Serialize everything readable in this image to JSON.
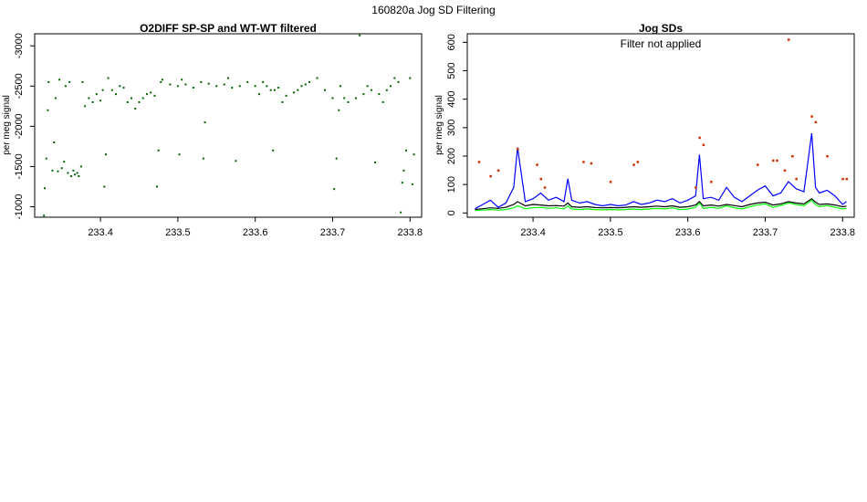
{
  "figure": {
    "title": "160820a   Jog SD Filtering"
  },
  "chart_data": [
    {
      "type": "scatter",
      "title": "O2DIFF SP-SP and WT-WT filtered",
      "xlabel": "",
      "ylabel": "per meg signal",
      "xlim": [
        233.315,
        233.815
      ],
      "ylim": [
        -3150,
        -870
      ],
      "y_reversed": true,
      "x_ticks": [
        "233.4",
        "233.5",
        "233.6",
        "233.7",
        "233.8"
      ],
      "x_tick_values": [
        233.4,
        233.5,
        233.6,
        233.7,
        233.8
      ],
      "y_ticks": [
        "-1000",
        "-1500",
        "-2000",
        "-2500",
        "-3000"
      ],
      "y_tick_values": [
        -1000,
        -1500,
        -2000,
        -2500,
        -3000
      ],
      "series": [
        {
          "color": "#006400",
          "points": [
            [
              233.327,
              -890
            ],
            [
              233.328,
              -1230
            ],
            [
              233.33,
              -1600
            ],
            [
              233.332,
              -2200
            ],
            [
              233.333,
              -2550
            ],
            [
              233.338,
              -1450
            ],
            [
              233.34,
              -1800
            ],
            [
              233.342,
              -2350
            ],
            [
              233.345,
              -1440
            ],
            [
              233.347,
              -2580
            ],
            [
              233.35,
              -1480
            ],
            [
              233.353,
              -1560
            ],
            [
              233.355,
              -2500
            ],
            [
              233.358,
              -1420
            ],
            [
              233.36,
              -2550
            ],
            [
              233.362,
              -1380
            ],
            [
              233.365,
              -1450
            ],
            [
              233.367,
              -1400
            ],
            [
              233.37,
              -1420
            ],
            [
              233.372,
              -1380
            ],
            [
              233.375,
              -1500
            ],
            [
              233.377,
              -2550
            ],
            [
              233.38,
              -2250
            ],
            [
              233.385,
              -2350
            ],
            [
              233.39,
              -2300
            ],
            [
              233.395,
              -2400
            ],
            [
              233.4,
              -2320
            ],
            [
              233.403,
              -2450
            ],
            [
              233.405,
              -1250
            ],
            [
              233.407,
              -1650
            ],
            [
              233.41,
              -2600
            ],
            [
              233.415,
              -2450
            ],
            [
              233.42,
              -2400
            ],
            [
              233.425,
              -2500
            ],
            [
              233.43,
              -2480
            ],
            [
              233.435,
              -2300
            ],
            [
              233.44,
              -2350
            ],
            [
              233.445,
              -2220
            ],
            [
              233.45,
              -2300
            ],
            [
              233.455,
              -2350
            ],
            [
              233.46,
              -2400
            ],
            [
              233.465,
              -2420
            ],
            [
              233.47,
              -2380
            ],
            [
              233.473,
              -1250
            ],
            [
              233.475,
              -1700
            ],
            [
              233.478,
              -2550
            ],
            [
              233.48,
              -2580
            ],
            [
              233.49,
              -2520
            ],
            [
              233.5,
              -2500
            ],
            [
              233.502,
              -1650
            ],
            [
              233.505,
              -2580
            ],
            [
              233.51,
              -2520
            ],
            [
              233.52,
              -2480
            ],
            [
              233.53,
              -2550
            ],
            [
              233.533,
              -1600
            ],
            [
              233.535,
              -2050
            ],
            [
              233.54,
              -2530
            ],
            [
              233.55,
              -2500
            ],
            [
              233.56,
              -2520
            ],
            [
              233.565,
              -2600
            ],
            [
              233.57,
              -2480
            ],
            [
              233.575,
              -1570
            ],
            [
              233.58,
              -2500
            ],
            [
              233.59,
              -2550
            ],
            [
              233.6,
              -2500
            ],
            [
              233.605,
              -2400
            ],
            [
              233.61,
              -2550
            ],
            [
              233.615,
              -2500
            ],
            [
              233.62,
              -2450
            ],
            [
              233.623,
              -1700
            ],
            [
              233.625,
              -2450
            ],
            [
              233.63,
              -2480
            ],
            [
              233.635,
              -2300
            ],
            [
              233.64,
              -2380
            ],
            [
              233.65,
              -2420
            ],
            [
              233.655,
              -2450
            ],
            [
              233.66,
              -2500
            ],
            [
              233.665,
              -2520
            ],
            [
              233.67,
              -2550
            ],
            [
              233.68,
              -2600
            ],
            [
              233.69,
              -2450
            ],
            [
              233.7,
              -2350
            ],
            [
              233.702,
              -1220
            ],
            [
              233.705,
              -1600
            ],
            [
              233.708,
              -2200
            ],
            [
              233.71,
              -2500
            ],
            [
              233.715,
              -2350
            ],
            [
              233.72,
              -2300
            ],
            [
              233.73,
              -2350
            ],
            [
              233.735,
              -3130
            ],
            [
              233.74,
              -2400
            ],
            [
              233.745,
              -2500
            ],
            [
              233.75,
              -2450
            ],
            [
              233.755,
              -1550
            ],
            [
              233.76,
              -2400
            ],
            [
              233.765,
              -2300
            ],
            [
              233.77,
              -2450
            ],
            [
              233.775,
              -2500
            ],
            [
              233.78,
              -2600
            ],
            [
              233.785,
              -2550
            ],
            [
              233.788,
              -930
            ],
            [
              233.79,
              -1300
            ],
            [
              233.792,
              -1450
            ],
            [
              233.795,
              -1700
            ],
            [
              233.8,
              -2600
            ],
            [
              233.803,
              -1280
            ],
            [
              233.805,
              -1650
            ]
          ]
        }
      ]
    },
    {
      "type": "line",
      "title": "Jog SDs",
      "xlabel": "",
      "ylabel": "per meg signal",
      "annotation": "Filter not applied",
      "xlim": [
        233.315,
        233.815
      ],
      "ylim": [
        -15,
        630
      ],
      "x_ticks": [
        "233.4",
        "233.5",
        "233.6",
        "233.7",
        "233.8"
      ],
      "x_tick_values": [
        233.4,
        233.5,
        233.6,
        233.7,
        233.8
      ],
      "y_ticks": [
        "0",
        "100",
        "200",
        "300",
        "400",
        "500",
        "600"
      ],
      "y_tick_values": [
        0,
        100,
        200,
        300,
        400,
        500,
        600
      ],
      "x": [
        233.325,
        233.335,
        233.345,
        233.355,
        233.365,
        233.375,
        233.38,
        233.39,
        233.4,
        233.41,
        233.42,
        233.43,
        233.44,
        233.445,
        233.45,
        233.46,
        233.47,
        233.48,
        233.49,
        233.5,
        233.51,
        233.52,
        233.53,
        233.54,
        233.55,
        233.56,
        233.57,
        233.58,
        233.59,
        233.6,
        233.61,
        233.615,
        233.62,
        233.63,
        233.64,
        233.65,
        233.66,
        233.67,
        233.68,
        233.69,
        233.7,
        233.71,
        233.72,
        233.73,
        233.74,
        233.75,
        233.76,
        233.765,
        233.77,
        233.78,
        233.79,
        233.8,
        233.805
      ],
      "series": [
        {
          "color": "#0000ff",
          "values": [
            15,
            30,
            45,
            20,
            35,
            90,
            230,
            40,
            50,
            70,
            45,
            55,
            40,
            120,
            45,
            35,
            40,
            30,
            25,
            30,
            25,
            28,
            40,
            30,
            35,
            45,
            40,
            50,
            35,
            45,
            60,
            205,
            50,
            55,
            45,
            90,
            55,
            40,
            60,
            80,
            95,
            60,
            70,
            110,
            85,
            75,
            280,
            90,
            70,
            80,
            60,
            30,
            40
          ]
        },
        {
          "color": "#000000",
          "values": [
            12,
            15,
            18,
            16,
            20,
            30,
            40,
            25,
            30,
            28,
            25,
            26,
            24,
            35,
            22,
            20,
            22,
            19,
            18,
            19,
            18,
            20,
            22,
            20,
            22,
            24,
            22,
            25,
            20,
            22,
            28,
            40,
            25,
            28,
            24,
            30,
            26,
            22,
            30,
            35,
            38,
            28,
            32,
            40,
            35,
            32,
            50,
            38,
            30,
            32,
            28,
            22,
            24
          ]
        },
        {
          "color": "#00ff00",
          "values": [
            8,
            10,
            12,
            10,
            12,
            18,
            25,
            15,
            18,
            20,
            16,
            18,
            14,
            25,
            14,
            12,
            14,
            12,
            11,
            12,
            11,
            12,
            14,
            12,
            14,
            16,
            14,
            18,
            12,
            14,
            20,
            35,
            16,
            20,
            16,
            25,
            18,
            14,
            22,
            28,
            32,
            20,
            26,
            35,
            30,
            25,
            45,
            30,
            22,
            26,
            20,
            14,
            16
          ]
        }
      ],
      "outliers": {
        "color": "#cc3300",
        "points": [
          [
            233.33,
            180
          ],
          [
            233.345,
            130
          ],
          [
            233.355,
            150
          ],
          [
            233.38,
            225
          ],
          [
            233.405,
            170
          ],
          [
            233.41,
            120
          ],
          [
            233.415,
            90
          ],
          [
            233.465,
            180
          ],
          [
            233.475,
            175
          ],
          [
            233.5,
            110
          ],
          [
            233.53,
            170
          ],
          [
            233.535,
            180
          ],
          [
            233.61,
            90
          ],
          [
            233.615,
            265
          ],
          [
            233.62,
            240
          ],
          [
            233.63,
            110
          ],
          [
            233.69,
            170
          ],
          [
            233.71,
            185
          ],
          [
            233.715,
            185
          ],
          [
            233.725,
            150
          ],
          [
            233.73,
            610
          ],
          [
            233.735,
            200
          ],
          [
            233.74,
            120
          ],
          [
            233.76,
            340
          ],
          [
            233.765,
            320
          ],
          [
            233.78,
            200
          ],
          [
            233.8,
            120
          ],
          [
            233.805,
            120
          ]
        ]
      }
    }
  ]
}
